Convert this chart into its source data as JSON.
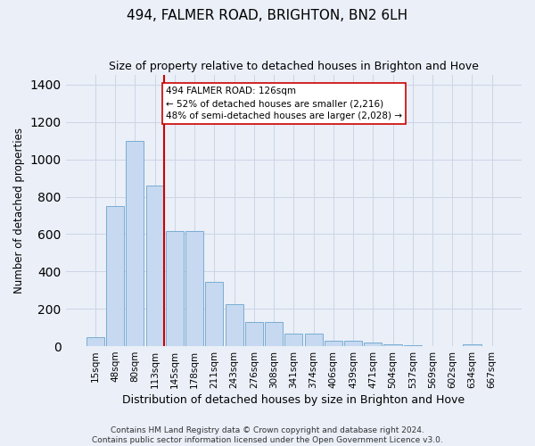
{
  "title": "494, FALMER ROAD, BRIGHTON, BN2 6LH",
  "subtitle": "Size of property relative to detached houses in Brighton and Hove",
  "xlabel": "Distribution of detached houses by size in Brighton and Hove",
  "ylabel": "Number of detached properties",
  "footer1": "Contains HM Land Registry data © Crown copyright and database right 2024.",
  "footer2": "Contains public sector information licensed under the Open Government Licence v3.0.",
  "categories": [
    "15sqm",
    "48sqm",
    "80sqm",
    "113sqm",
    "145sqm",
    "178sqm",
    "211sqm",
    "243sqm",
    "276sqm",
    "308sqm",
    "341sqm",
    "374sqm",
    "406sqm",
    "439sqm",
    "471sqm",
    "504sqm",
    "537sqm",
    "569sqm",
    "602sqm",
    "634sqm",
    "667sqm"
  ],
  "bar_heights": [
    50,
    750,
    1100,
    860,
    615,
    615,
    345,
    225,
    130,
    130,
    65,
    65,
    30,
    30,
    20,
    12,
    5,
    2,
    2,
    8,
    2
  ],
  "bar_color": "#c6d9f0",
  "bar_edge_color": "#7aadd4",
  "grid_color": "#cdd5e5",
  "background_color": "#eaeff8",
  "vline_color": "#cc0000",
  "vline_x": 3.45,
  "annotation_text": "494 FALMER ROAD: 126sqm\n← 52% of detached houses are smaller (2,216)\n48% of semi-detached houses are larger (2,028) →",
  "ylim": [
    0,
    1450
  ],
  "yticks": [
    0,
    200,
    400,
    600,
    800,
    1000,
    1200,
    1400
  ]
}
